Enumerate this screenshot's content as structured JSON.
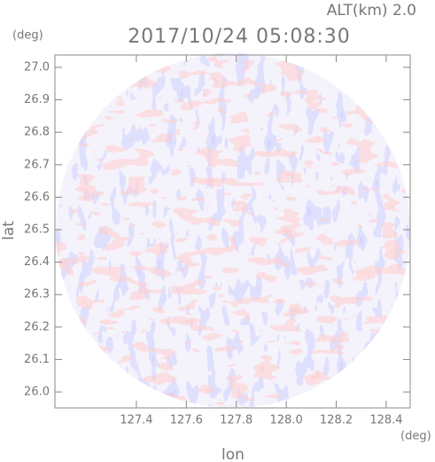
{
  "chart_data": {
    "type": "radar-ppi",
    "title": "2017/10/24 05:08:30",
    "subtitle": "ALT(km) 2.0",
    "x_label": "lon",
    "y_label": "lat",
    "x_unit": "(deg)",
    "y_unit": "(deg)",
    "xlim": [
      127.074,
      128.496
    ],
    "ylim": [
      25.951,
      27.038
    ],
    "xticks": [
      127.4,
      127.6,
      127.8,
      {
        "value": 128,
        "label": "128.0"
      },
      128.2,
      128.4
    ],
    "yticks": [
      {
        "value": 26,
        "label": "26.0"
      },
      26.1,
      26.2,
      26.3,
      26.4,
      26.5,
      26.6,
      26.7,
      26.8,
      26.9,
      {
        "value": 27,
        "label": "27.0"
      }
    ]
  }
}
